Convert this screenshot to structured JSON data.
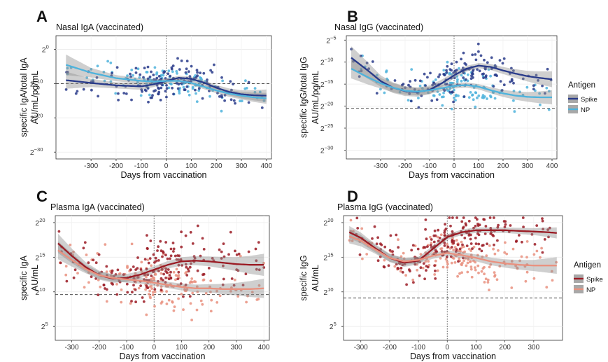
{
  "figure": {
    "x_label": "Days from vaccination",
    "legend_title": "Antigen"
  },
  "chart_data": [
    {
      "panel": "A",
      "type": "scatter",
      "title": "Nasal IgA (vaccinated)",
      "xlabel": "Days from vaccination",
      "ylabel_1": "specific IgA/total IgA",
      "ylabel_2": "AU/mL/pg/mL",
      "xlim": [
        -440,
        420
      ],
      "ylim": [
        -32,
        4
      ],
      "x_ticks": [
        -300,
        -200,
        -100,
        0,
        100,
        200,
        300,
        400
      ],
      "y_ticks": [
        {
          "value": 0,
          "label": "2"
        },
        {
          "value": -10,
          "label": "2"
        },
        {
          "value": -20,
          "label": "2"
        },
        {
          "value": -30,
          "label": "2"
        }
      ],
      "y_exponents": [
        "0",
        "−10",
        "−20",
        "−30"
      ],
      "hline": -10,
      "vline": 0,
      "legend": null,
      "series": [
        {
          "name": "Spike",
          "color": "#283a8a",
          "points": 150,
          "seed": 11,
          "spread": 2.3,
          "fit": [
            [
              -400,
              -9.0
            ],
            [
              -300,
              -9.8
            ],
            [
              -200,
              -10.5
            ],
            [
              -100,
              -10.8
            ],
            [
              -50,
              -10.2
            ],
            [
              0,
              -9.2
            ],
            [
              50,
              -8.3
            ],
            [
              100,
              -8.6
            ],
            [
              150,
              -9.7
            ],
            [
              200,
              -11.2
            ],
            [
              250,
              -12.4
            ],
            [
              300,
              -13.1
            ],
            [
              350,
              -13.4
            ],
            [
              400,
              -13.5
            ]
          ],
          "ci": [
            [
              -400,
              2.5
            ],
            [
              -300,
              1.2
            ],
            [
              -200,
              0.9
            ],
            [
              -100,
              1.0
            ],
            [
              0,
              0.6
            ],
            [
              100,
              0.6
            ],
            [
              200,
              0.8
            ],
            [
              300,
              1.2
            ],
            [
              400,
              1.8
            ]
          ]
        },
        {
          "name": "NP",
          "color": "#4eb3dc",
          "points": 120,
          "seed": 23,
          "spread": 2.0,
          "fit": [
            [
              -400,
              -4.5
            ],
            [
              -300,
              -6.8
            ],
            [
              -200,
              -8.4
            ],
            [
              -100,
              -9.2
            ],
            [
              -50,
              -9.4
            ],
            [
              0,
              -9.2
            ],
            [
              50,
              -9.2
            ],
            [
              100,
              -9.8
            ],
            [
              150,
              -10.9
            ],
            [
              200,
              -12.0
            ],
            [
              250,
              -12.9
            ],
            [
              300,
              -13.5
            ],
            [
              350,
              -14.0
            ],
            [
              400,
              -14.3
            ]
          ],
          "ci": [
            [
              -400,
              3.0
            ],
            [
              -300,
              1.4
            ],
            [
              -200,
              0.9
            ],
            [
              -100,
              0.8
            ],
            [
              0,
              0.6
            ],
            [
              100,
              0.6
            ],
            [
              200,
              0.8
            ],
            [
              300,
              1.1
            ],
            [
              400,
              1.6
            ]
          ]
        }
      ]
    },
    {
      "panel": "B",
      "type": "scatter",
      "title": "Nasal IgG (vaccinated)",
      "xlabel": "Days from vaccination",
      "ylabel_1": "specific IgG/total IgG",
      "ylabel_2": "AU/mL/pg/mL",
      "xlim": [
        -440,
        420
      ],
      "ylim": [
        -32,
        -4
      ],
      "x_ticks": [
        -300,
        -200,
        -100,
        0,
        100,
        200,
        300,
        400
      ],
      "y_ticks": [
        {
          "value": -5,
          "label": "2"
        },
        {
          "value": -10,
          "label": "2"
        },
        {
          "value": -15,
          "label": "2"
        },
        {
          "value": -20,
          "label": "2"
        },
        {
          "value": -25,
          "label": "2"
        },
        {
          "value": -30,
          "label": "2"
        }
      ],
      "y_exponents": [
        "−5",
        "−10",
        "−15",
        "−20",
        "−25",
        "−30"
      ],
      "hline": -20.5,
      "vline": 0,
      "legend": {
        "title": "Antigen",
        "items": [
          "Spike",
          "NP"
        ]
      },
      "series": [
        {
          "name": "Spike",
          "color": "#283a8a",
          "points": 150,
          "seed": 37,
          "spread": 2.2,
          "fit": [
            [
              -420,
              -9.0
            ],
            [
              -350,
              -12.0
            ],
            [
              -300,
              -14.3
            ],
            [
              -250,
              -15.8
            ],
            [
              -200,
              -16.6
            ],
            [
              -150,
              -16.8
            ],
            [
              -100,
              -16.3
            ],
            [
              -50,
              -14.8
            ],
            [
              0,
              -13.0
            ],
            [
              50,
              -11.5
            ],
            [
              100,
              -10.8
            ],
            [
              150,
              -11.1
            ],
            [
              200,
              -11.9
            ],
            [
              250,
              -12.6
            ],
            [
              300,
              -13.2
            ],
            [
              350,
              -13.6
            ],
            [
              400,
              -13.9
            ]
          ],
          "ci": [
            [
              -420,
              2.6
            ],
            [
              -300,
              1.3
            ],
            [
              -200,
              1.1
            ],
            [
              -100,
              1.0
            ],
            [
              0,
              0.7
            ],
            [
              100,
              0.6
            ],
            [
              200,
              0.8
            ],
            [
              300,
              1.2
            ],
            [
              400,
              1.8
            ]
          ]
        },
        {
          "name": "NP",
          "color": "#4eb3dc",
          "points": 120,
          "seed": 51,
          "spread": 2.0,
          "fit": [
            [
              -420,
              -11.5
            ],
            [
              -350,
              -13.5
            ],
            [
              -300,
              -14.8
            ],
            [
              -250,
              -15.8
            ],
            [
              -200,
              -16.5
            ],
            [
              -150,
              -16.7
            ],
            [
              -100,
              -16.4
            ],
            [
              -50,
              -15.9
            ],
            [
              0,
              -15.4
            ],
            [
              50,
              -15.2
            ],
            [
              100,
              -15.6
            ],
            [
              150,
              -16.4
            ],
            [
              200,
              -17.1
            ],
            [
              250,
              -17.6
            ],
            [
              300,
              -17.9
            ],
            [
              350,
              -18.0
            ],
            [
              400,
              -18.0
            ]
          ],
          "ci": [
            [
              -420,
              2.2
            ],
            [
              -300,
              1.2
            ],
            [
              -200,
              0.9
            ],
            [
              -100,
              0.8
            ],
            [
              0,
              0.6
            ],
            [
              100,
              0.6
            ],
            [
              200,
              0.8
            ],
            [
              300,
              1.1
            ],
            [
              400,
              1.6
            ]
          ]
        }
      ]
    },
    {
      "panel": "C",
      "type": "scatter",
      "title": "Plasma IgA (vaccinated)",
      "xlabel": "Days from vaccination",
      "ylabel_1": "specific IgA",
      "ylabel_2": "AU/mL",
      "xlim": [
        -360,
        420
      ],
      "ylim": [
        3,
        21
      ],
      "x_ticks": [
        -300,
        -200,
        -100,
        0,
        100,
        200,
        300,
        400
      ],
      "y_ticks": [
        {
          "value": 5,
          "label": "2"
        },
        {
          "value": 10,
          "label": "2"
        },
        {
          "value": 15,
          "label": "2"
        },
        {
          "value": 20,
          "label": "2"
        }
      ],
      "y_exponents": [
        "5",
        "10",
        "15",
        "20"
      ],
      "hline": 9.6,
      "vline": 0,
      "legend": null,
      "series": [
        {
          "name": "Spike",
          "color": "#9b1b24",
          "points": 190,
          "seed": 67,
          "spread": 1.9,
          "fit": [
            [
              -350,
              17.0
            ],
            [
              -300,
              15.2
            ],
            [
              -250,
              13.6
            ],
            [
              -200,
              12.4
            ],
            [
              -150,
              11.9
            ],
            [
              -100,
              12.0
            ],
            [
              -50,
              12.5
            ],
            [
              0,
              13.2
            ],
            [
              50,
              13.9
            ],
            [
              100,
              14.4
            ],
            [
              150,
              14.5
            ],
            [
              200,
              14.4
            ],
            [
              250,
              14.2
            ],
            [
              300,
              14.0
            ],
            [
              350,
              13.9
            ],
            [
              400,
              13.9
            ]
          ],
          "ci": [
            [
              -350,
              1.4
            ],
            [
              -250,
              0.7
            ],
            [
              -150,
              0.6
            ],
            [
              0,
              0.5
            ],
            [
              100,
              0.6
            ],
            [
              200,
              0.7
            ],
            [
              300,
              1.0
            ],
            [
              400,
              1.6
            ]
          ]
        },
        {
          "name": "NP",
          "color": "#e9917f",
          "points": 170,
          "seed": 79,
          "spread": 1.7,
          "fit": [
            [
              -350,
              16.0
            ],
            [
              -300,
              14.6
            ],
            [
              -250,
              13.3
            ],
            [
              -200,
              12.4
            ],
            [
              -150,
              12.0
            ],
            [
              -100,
              11.8
            ],
            [
              -50,
              11.6
            ],
            [
              0,
              11.3
            ],
            [
              50,
              11.0
            ],
            [
              100,
              10.7
            ],
            [
              150,
              10.5
            ],
            [
              200,
              10.5
            ],
            [
              250,
              10.4
            ],
            [
              300,
              10.4
            ],
            [
              350,
              10.4
            ],
            [
              400,
              10.5
            ]
          ],
          "ci": [
            [
              -350,
              1.3
            ],
            [
              -250,
              0.6
            ],
            [
              -150,
              0.5
            ],
            [
              0,
              0.4
            ],
            [
              100,
              0.5
            ],
            [
              200,
              0.6
            ],
            [
              300,
              0.9
            ],
            [
              400,
              1.4
            ]
          ]
        }
      ]
    },
    {
      "panel": "D",
      "type": "scatter",
      "title": "Plasma IgG (vaccinated)",
      "xlabel": "Days from vaccination",
      "ylabel_1": "specific IgG",
      "ylabel_2": "AU/mL",
      "xlim": [
        -360,
        400
      ],
      "ylim": [
        3,
        21
      ],
      "x_ticks": [
        -300,
        -200,
        -100,
        0,
        100,
        200,
        300
      ],
      "y_ticks": [
        {
          "value": 5,
          "label": "2"
        },
        {
          "value": 10,
          "label": "2"
        },
        {
          "value": 15,
          "label": "2"
        },
        {
          "value": 20,
          "label": "2"
        }
      ],
      "y_exponents": [
        "5",
        "10",
        "15",
        "20"
      ],
      "hline": 9.1,
      "vline": 0,
      "legend": {
        "title": "Antigen",
        "items": [
          "Spike",
          "NP"
        ]
      },
      "series": [
        {
          "name": "Spike",
          "color": "#9b1b24",
          "points": 210,
          "seed": 83,
          "spread": 1.6,
          "fit": [
            [
              -340,
              18.6
            ],
            [
              -300,
              17.8
            ],
            [
              -250,
              16.3
            ],
            [
              -200,
              14.9
            ],
            [
              -150,
              14.2
            ],
            [
              -100,
              14.5
            ],
            [
              -50,
              16.2
            ],
            [
              0,
              17.9
            ],
            [
              50,
              18.6
            ],
            [
              100,
              18.9
            ],
            [
              150,
              18.9
            ],
            [
              200,
              18.9
            ],
            [
              250,
              18.8
            ],
            [
              300,
              18.7
            ],
            [
              350,
              18.6
            ],
            [
              380,
              18.5
            ]
          ],
          "ci": [
            [
              -340,
              0.9
            ],
            [
              -250,
              0.6
            ],
            [
              -150,
              0.6
            ],
            [
              0,
              0.4
            ],
            [
              100,
              0.4
            ],
            [
              200,
              0.4
            ],
            [
              300,
              0.5
            ],
            [
              380,
              0.8
            ]
          ]
        },
        {
          "name": "NP",
          "color": "#e9917f",
          "points": 180,
          "seed": 97,
          "spread": 1.8,
          "fit": [
            [
              -340,
              18.0
            ],
            [
              -300,
              17.4
            ],
            [
              -250,
              16.1
            ],
            [
              -200,
              14.9
            ],
            [
              -150,
              14.4
            ],
            [
              -100,
              14.6
            ],
            [
              -50,
              15.2
            ],
            [
              0,
              15.6
            ],
            [
              50,
              15.3
            ],
            [
              100,
              14.9
            ],
            [
              150,
              14.4
            ],
            [
              200,
              14.1
            ],
            [
              250,
              13.9
            ],
            [
              300,
              13.8
            ],
            [
              350,
              13.8
            ],
            [
              380,
              13.8
            ]
          ],
          "ci": [
            [
              -340,
              1.0
            ],
            [
              -250,
              0.6
            ],
            [
              -150,
              0.5
            ],
            [
              0,
              0.4
            ],
            [
              100,
              0.5
            ],
            [
              200,
              0.6
            ],
            [
              300,
              0.8
            ],
            [
              380,
              1.2
            ]
          ]
        }
      ]
    }
  ]
}
